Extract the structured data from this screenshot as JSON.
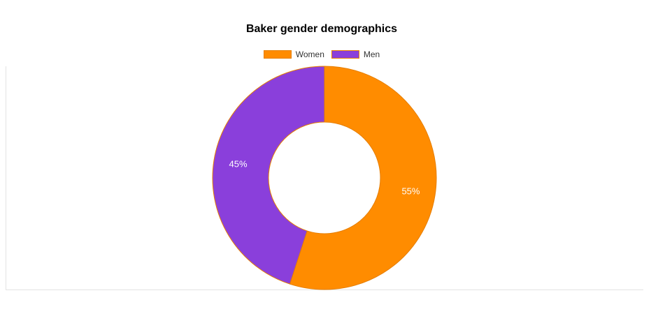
{
  "chart_data": {
    "type": "pie",
    "title": "Baker gender demographics",
    "legend_position": "top",
    "donut": true,
    "series": [
      {
        "categories": [
          "Women",
          "Men"
        ],
        "values": [
          55,
          45
        ],
        "labels": [
          "55%",
          "45%"
        ],
        "colors": [
          "#ff8c00",
          "#8a3fdb"
        ]
      }
    ]
  }
}
